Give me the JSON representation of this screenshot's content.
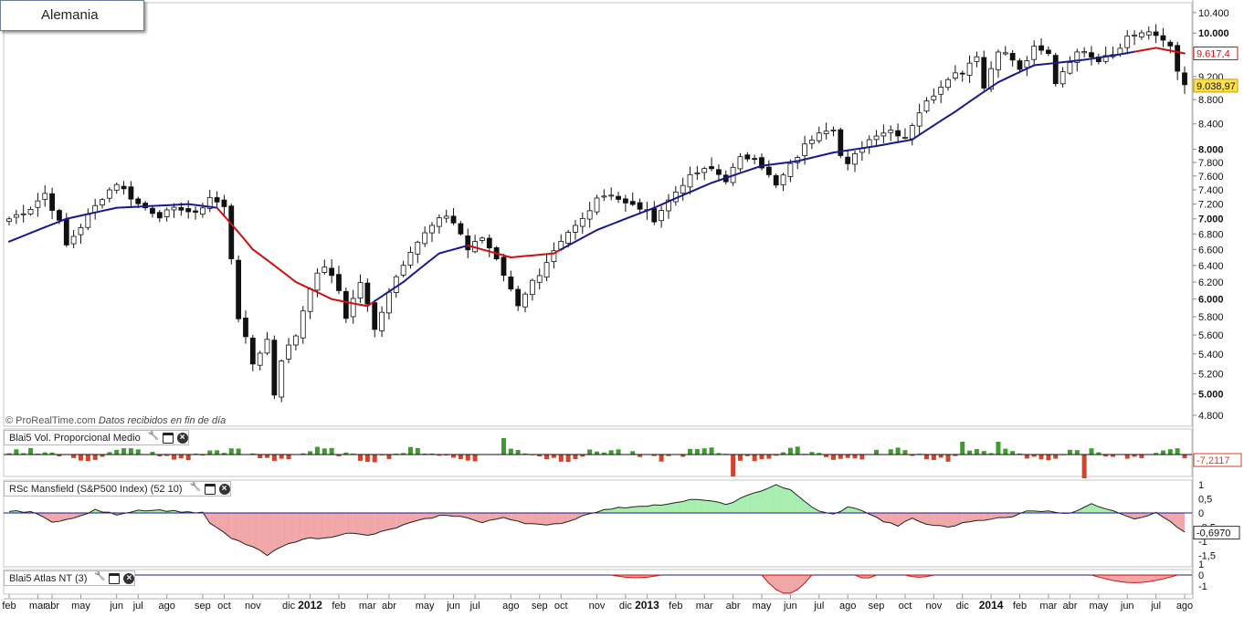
{
  "window": {
    "title": "Alemania"
  },
  "watermark": {
    "brand": "© ProRealTime.com",
    "note": "Datos recibidos en fin de día"
  },
  "colors": {
    "ma_up": "#1a1a8c",
    "ma_down": "#cc1111",
    "vol_up": "#3c9e2a",
    "vol_down": "#d1442a",
    "rs_pos": "#a7eeb0",
    "rs_neg": "#f1a7a7",
    "bull_candle": "#ffffff",
    "bear_candle": "#111111"
  },
  "chart_data": [
    {
      "type": "candlestick",
      "panel": "price",
      "y_scale": "log",
      "ylim": [
        4700,
        10600
      ],
      "y_ticks": [
        4800,
        5000,
        5200,
        5400,
        5600,
        5800,
        6000,
        6200,
        6400,
        6600,
        6800,
        7000,
        7200,
        7400,
        7600,
        7800,
        8000,
        8400,
        8800,
        9200,
        10000,
        10400
      ],
      "y_tick_labels": [
        "4.800",
        "5.000",
        "5.200",
        "5.400",
        "5.600",
        "5.800",
        "6.000",
        "6.200",
        "6.400",
        "6.600",
        "6.800",
        "7.000",
        "7.200",
        "7.400",
        "7.600",
        "7.800",
        "8.000",
        "8.400",
        "8.800",
        "9.200",
        "10.000",
        "10.400"
      ],
      "bold_ticks": [
        5000,
        6000,
        7000,
        8000,
        10000
      ],
      "moving_average_label": "9.617,4",
      "moving_average_value": 9617.4,
      "last_price_label": "9.038,97",
      "last_price": 9038.97,
      "close_anchors": [
        [
          0,
          7000
        ],
        [
          3,
          7150
        ],
        [
          5,
          7350
        ],
        [
          7,
          6950
        ],
        [
          8,
          6650
        ],
        [
          10,
          6900
        ],
        [
          13,
          7300
        ],
        [
          15,
          7500
        ],
        [
          18,
          7200
        ],
        [
          21,
          7050
        ],
        [
          24,
          7150
        ],
        [
          26,
          7050
        ],
        [
          28,
          7300
        ],
        [
          30,
          7150
        ],
        [
          31,
          6500
        ],
        [
          32,
          5800
        ],
        [
          34,
          5300
        ],
        [
          36,
          5550
        ],
        [
          37,
          5000
        ],
        [
          38,
          5350
        ],
        [
          40,
          5600
        ],
        [
          42,
          6150
        ],
        [
          44,
          6400
        ],
        [
          46,
          6100
        ],
        [
          47,
          5800
        ],
        [
          49,
          6200
        ],
        [
          51,
          5650
        ],
        [
          53,
          6100
        ],
        [
          56,
          6600
        ],
        [
          59,
          6900
        ],
        [
          61,
          7050
        ],
        [
          62,
          6950
        ],
        [
          63,
          6800
        ],
        [
          64,
          6600
        ],
        [
          66,
          6750
        ],
        [
          68,
          6500
        ],
        [
          70,
          6100
        ],
        [
          71,
          5950
        ],
        [
          73,
          6200
        ],
        [
          74,
          6250
        ],
        [
          76,
          6550
        ],
        [
          78,
          6800
        ],
        [
          80,
          7000
        ],
        [
          82,
          7300
        ],
        [
          84,
          7350
        ],
        [
          86,
          7200
        ],
        [
          88,
          7150
        ],
        [
          90,
          7000
        ],
        [
          92,
          7250
        ],
        [
          94,
          7500
        ],
        [
          96,
          7650
        ],
        [
          98,
          7700
        ],
        [
          100,
          7550
        ],
        [
          102,
          7850
        ],
        [
          104,
          7900
        ],
        [
          106,
          7600
        ],
        [
          107,
          7450
        ],
        [
          109,
          7750
        ],
        [
          111,
          8050
        ],
        [
          113,
          8300
        ],
        [
          115,
          8350
        ],
        [
          116,
          7900
        ],
        [
          117,
          7750
        ],
        [
          119,
          8050
        ],
        [
          121,
          8250
        ],
        [
          123,
          8300
        ],
        [
          125,
          8200
        ],
        [
          127,
          8600
        ],
        [
          129,
          8900
        ],
        [
          131,
          9200
        ],
        [
          133,
          9300
        ],
        [
          135,
          9600
        ],
        [
          136,
          9000
        ],
        [
          138,
          9700
        ],
        [
          140,
          9500
        ],
        [
          141,
          9300
        ],
        [
          143,
          9700
        ],
        [
          145,
          9600
        ],
        [
          146,
          9100
        ],
        [
          148,
          9500
        ],
        [
          150,
          9700
        ],
        [
          152,
          9500
        ],
        [
          153,
          9600
        ],
        [
          155,
          9700
        ],
        [
          156,
          9950
        ],
        [
          158,
          10000
        ],
        [
          160,
          9950
        ],
        [
          162,
          9800
        ],
        [
          163,
          9250
        ],
        [
          164,
          9039
        ]
      ],
      "ma_anchors": [
        [
          0,
          6700
        ],
        [
          8,
          7000
        ],
        [
          15,
          7150
        ],
        [
          25,
          7200
        ],
        [
          29,
          7150
        ],
        [
          34,
          6600
        ],
        [
          40,
          6200
        ],
        [
          45,
          6000
        ],
        [
          48,
          5950
        ],
        [
          50,
          5920
        ],
        [
          55,
          6200
        ],
        [
          60,
          6550
        ],
        [
          64,
          6650
        ],
        [
          70,
          6500
        ],
        [
          76,
          6550
        ],
        [
          82,
          6850
        ],
        [
          90,
          7150
        ],
        [
          98,
          7500
        ],
        [
          105,
          7750
        ],
        [
          110,
          7820
        ],
        [
          115,
          7950
        ],
        [
          121,
          8050
        ],
        [
          126,
          8150
        ],
        [
          132,
          8600
        ],
        [
          138,
          9100
        ],
        [
          143,
          9400
        ],
        [
          150,
          9500
        ],
        [
          155,
          9600
        ],
        [
          160,
          9720
        ],
        [
          164,
          9617
        ]
      ],
      "ma_red_ranges": [
        [
          29,
          50
        ],
        [
          64,
          76
        ],
        [
          157,
          164
        ]
      ]
    },
    {
      "type": "bar",
      "panel": "volume",
      "title": "Blai5 Vol. Proporcional Medio",
      "last_value_label": "-7,2117",
      "last_value": -7.2117
    },
    {
      "type": "area",
      "panel": "rsc",
      "title": "RSc Mansfield (S&P500 Index) (52 10)",
      "y_ticks": [
        1,
        0.5,
        0,
        -0.5,
        -1,
        -1.5
      ],
      "y_tick_labels": [
        "1",
        "0,5",
        "0",
        "-0,5",
        "-1",
        "-1,5"
      ],
      "last_value_label": "-0,6970",
      "last_value": -0.697,
      "rs_anchors": [
        [
          0,
          0.05
        ],
        [
          3,
          0.05
        ],
        [
          6,
          -0.3
        ],
        [
          9,
          -0.2
        ],
        [
          12,
          0.1
        ],
        [
          15,
          -0.05
        ],
        [
          18,
          0.1
        ],
        [
          21,
          0.1
        ],
        [
          24,
          0.05
        ],
        [
          27,
          0
        ],
        [
          28,
          -0.35
        ],
        [
          31,
          -0.9
        ],
        [
          34,
          -1.2
        ],
        [
          36,
          -1.5
        ],
        [
          38,
          -1.2
        ],
        [
          41,
          -0.9
        ],
        [
          44,
          -0.9
        ],
        [
          47,
          -0.7
        ],
        [
          50,
          -0.8
        ],
        [
          53,
          -0.6
        ],
        [
          56,
          -0.35
        ],
        [
          60,
          -0.1
        ],
        [
          63,
          -0.1
        ],
        [
          66,
          -0.35
        ],
        [
          69,
          -0.15
        ],
        [
          72,
          -0.35
        ],
        [
          75,
          -0.45
        ],
        [
          78,
          -0.3
        ],
        [
          81,
          0
        ],
        [
          84,
          0.15
        ],
        [
          88,
          0.25
        ],
        [
          92,
          0.3
        ],
        [
          96,
          0.5
        ],
        [
          100,
          0.3
        ],
        [
          104,
          0.7
        ],
        [
          107,
          1.0
        ],
        [
          109,
          0.8
        ],
        [
          111,
          0.4
        ],
        [
          113,
          0.05
        ],
        [
          115,
          -0.05
        ],
        [
          117,
          0.2
        ],
        [
          119,
          0.1
        ],
        [
          122,
          -0.3
        ],
        [
          124,
          -0.45
        ],
        [
          126,
          -0.2
        ],
        [
          128,
          -0.4
        ],
        [
          131,
          -0.5
        ],
        [
          134,
          -0.3
        ],
        [
          137,
          -0.2
        ],
        [
          140,
          -0.15
        ],
        [
          142,
          0.1
        ],
        [
          145,
          0.05
        ],
        [
          148,
          0
        ],
        [
          151,
          0.3
        ],
        [
          154,
          0.1
        ],
        [
          157,
          -0.2
        ],
        [
          160,
          0
        ],
        [
          162,
          -0.3
        ],
        [
          164,
          -0.697
        ]
      ]
    },
    {
      "type": "area",
      "panel": "atlas",
      "title": "Blai5 Atlas NT (3)",
      "y_ticks": [
        1,
        0,
        -1
      ],
      "y_tick_labels": [
        "1",
        "0",
        "-1"
      ]
    }
  ],
  "x_axis": {
    "tick_labels": [
      "feb",
      "mar",
      "abr",
      "may",
      "jun",
      "jul",
      "ago",
      "sep",
      "oct",
      "nov",
      "dic",
      "2012",
      "feb",
      "mar",
      "abr",
      "may",
      "jun",
      "jul",
      "ago",
      "sep",
      "oct",
      "nov",
      "dic",
      "2013",
      "feb",
      "mar",
      "abr",
      "may",
      "jun",
      "jul",
      "ago",
      "sep",
      "oct",
      "nov",
      "dic",
      "2014",
      "feb",
      "mar",
      "abr",
      "may",
      "jun",
      "jul",
      "ago"
    ],
    "bold_labels": [
      "2012",
      "2013",
      "2014"
    ],
    "tick_bar_index": [
      0,
      4,
      7,
      11,
      16,
      20,
      24,
      29,
      33,
      37,
      42,
      46,
      50,
      54,
      58,
      63,
      67,
      71,
      76,
      80,
      84,
      89,
      93,
      97,
      101,
      105,
      110,
      114,
      118,
      123,
      127,
      131,
      136,
      140,
      144,
      149,
      153,
      157,
      161,
      165,
      169,
      174,
      178
    ]
  }
}
